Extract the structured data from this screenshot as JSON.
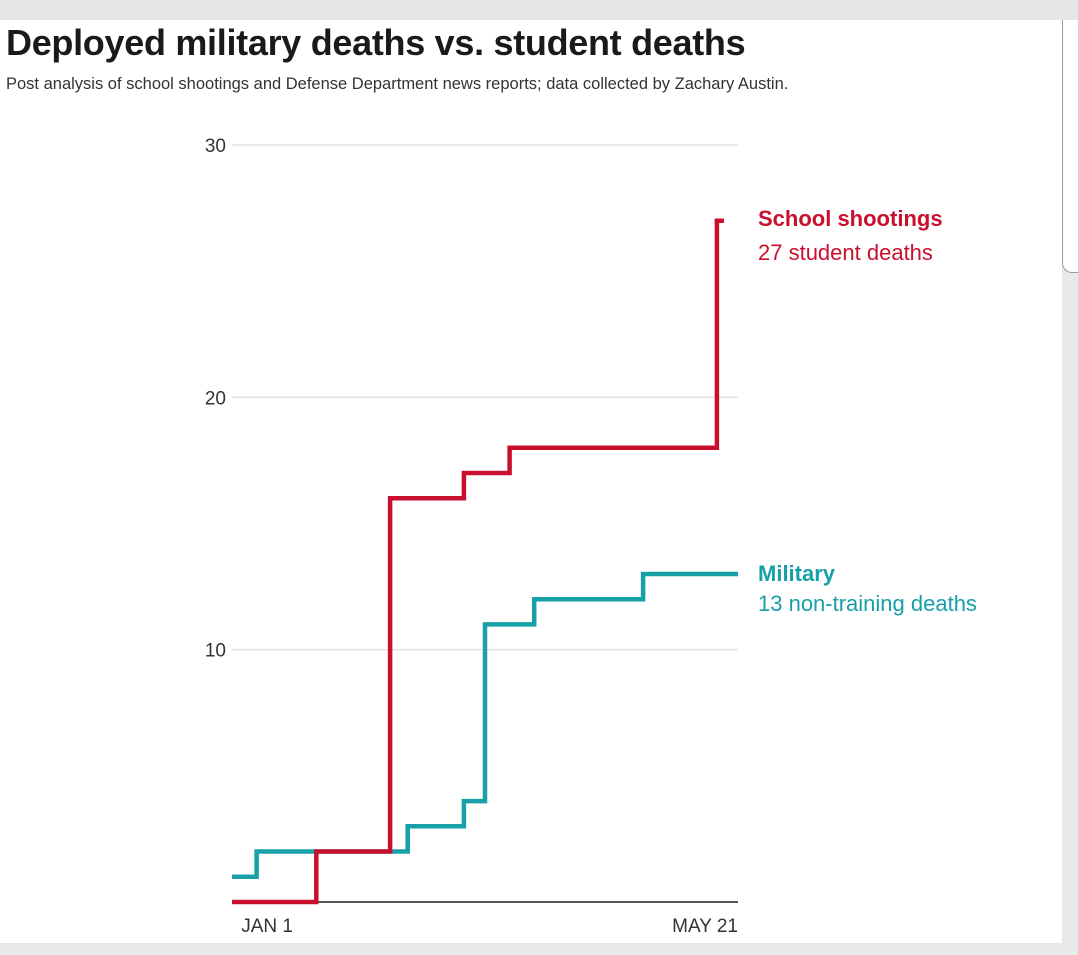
{
  "header": {
    "title": "Deployed military deaths vs. student deaths",
    "subtitle": "Post analysis of school shootings and Defense Department news reports; data collected by Zachary Austin."
  },
  "colors": {
    "school": "#c8102e",
    "military": "#17a0a8",
    "grid": "#e2e2e2",
    "axis": "#555555"
  },
  "chart_data": {
    "type": "line",
    "step": true,
    "title": "Deployed military deaths vs. student deaths",
    "xlabel": "",
    "ylabel": "",
    "x_domain": [
      -4,
      140
    ],
    "ylim": [
      0,
      30
    ],
    "yticks": [
      10,
      20,
      30
    ],
    "xtick_labels": [
      "JAN 1",
      "MAY 21"
    ],
    "xtick_values": [
      6,
      140
    ],
    "grid": true,
    "series": [
      {
        "key": "school",
        "name": "School shootings",
        "end_label": "27 student deaths",
        "points": [
          [
            -4,
            0
          ],
          [
            20,
            0
          ],
          [
            20,
            2
          ],
          [
            41,
            2
          ],
          [
            41,
            16
          ],
          [
            62,
            16
          ],
          [
            62,
            17
          ],
          [
            75,
            17
          ],
          [
            75,
            18
          ],
          [
            134,
            18
          ],
          [
            134,
            27
          ],
          [
            136,
            27
          ]
        ]
      },
      {
        "key": "military",
        "name": "Military",
        "end_label": "13 non-training deaths",
        "points": [
          [
            -4,
            1
          ],
          [
            3,
            1
          ],
          [
            3,
            2
          ],
          [
            46,
            2
          ],
          [
            46,
            3
          ],
          [
            62,
            3
          ],
          [
            62,
            4
          ],
          [
            68,
            4
          ],
          [
            68,
            11
          ],
          [
            82,
            11
          ],
          [
            82,
            12
          ],
          [
            113,
            12
          ],
          [
            113,
            13
          ],
          [
            140,
            13
          ]
        ]
      }
    ]
  }
}
